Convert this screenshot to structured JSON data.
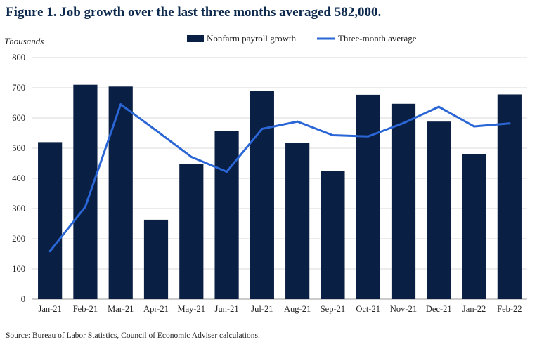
{
  "title": "Figure 1. Job growth over the last three months averaged 582,000.",
  "source": "Source: Bureau of Labor Statistics, Council of Economic Adviser calculations.",
  "chart_data": {
    "type": "bar",
    "ylabel": "Thousands",
    "xlabel": "",
    "ylim": [
      0,
      800
    ],
    "yticks": [
      0,
      100,
      200,
      300,
      400,
      500,
      600,
      700,
      800
    ],
    "grid": true,
    "legend_position": "top",
    "categories": [
      "Jan-21",
      "Feb-21",
      "Mar-21",
      "Apr-21",
      "May-21",
      "Jun-21",
      "Jul-21",
      "Aug-21",
      "Sep-21",
      "Oct-21",
      "Nov-21",
      "Dec-21",
      "Jan-22",
      "Feb-22"
    ],
    "series": [
      {
        "name": "Nonfarm payroll growth",
        "type": "bar",
        "color": "#0a1f44",
        "values": [
          520,
          710,
          704,
          263,
          447,
          557,
          689,
          517,
          424,
          677,
          647,
          588,
          481,
          678
        ]
      },
      {
        "name": "Three-month average",
        "type": "line",
        "color": "#2a66d6",
        "values": [
          159,
          306,
          645,
          559,
          471,
          422,
          564,
          588,
          543,
          539,
          583,
          637,
          572,
          582
        ]
      }
    ]
  }
}
